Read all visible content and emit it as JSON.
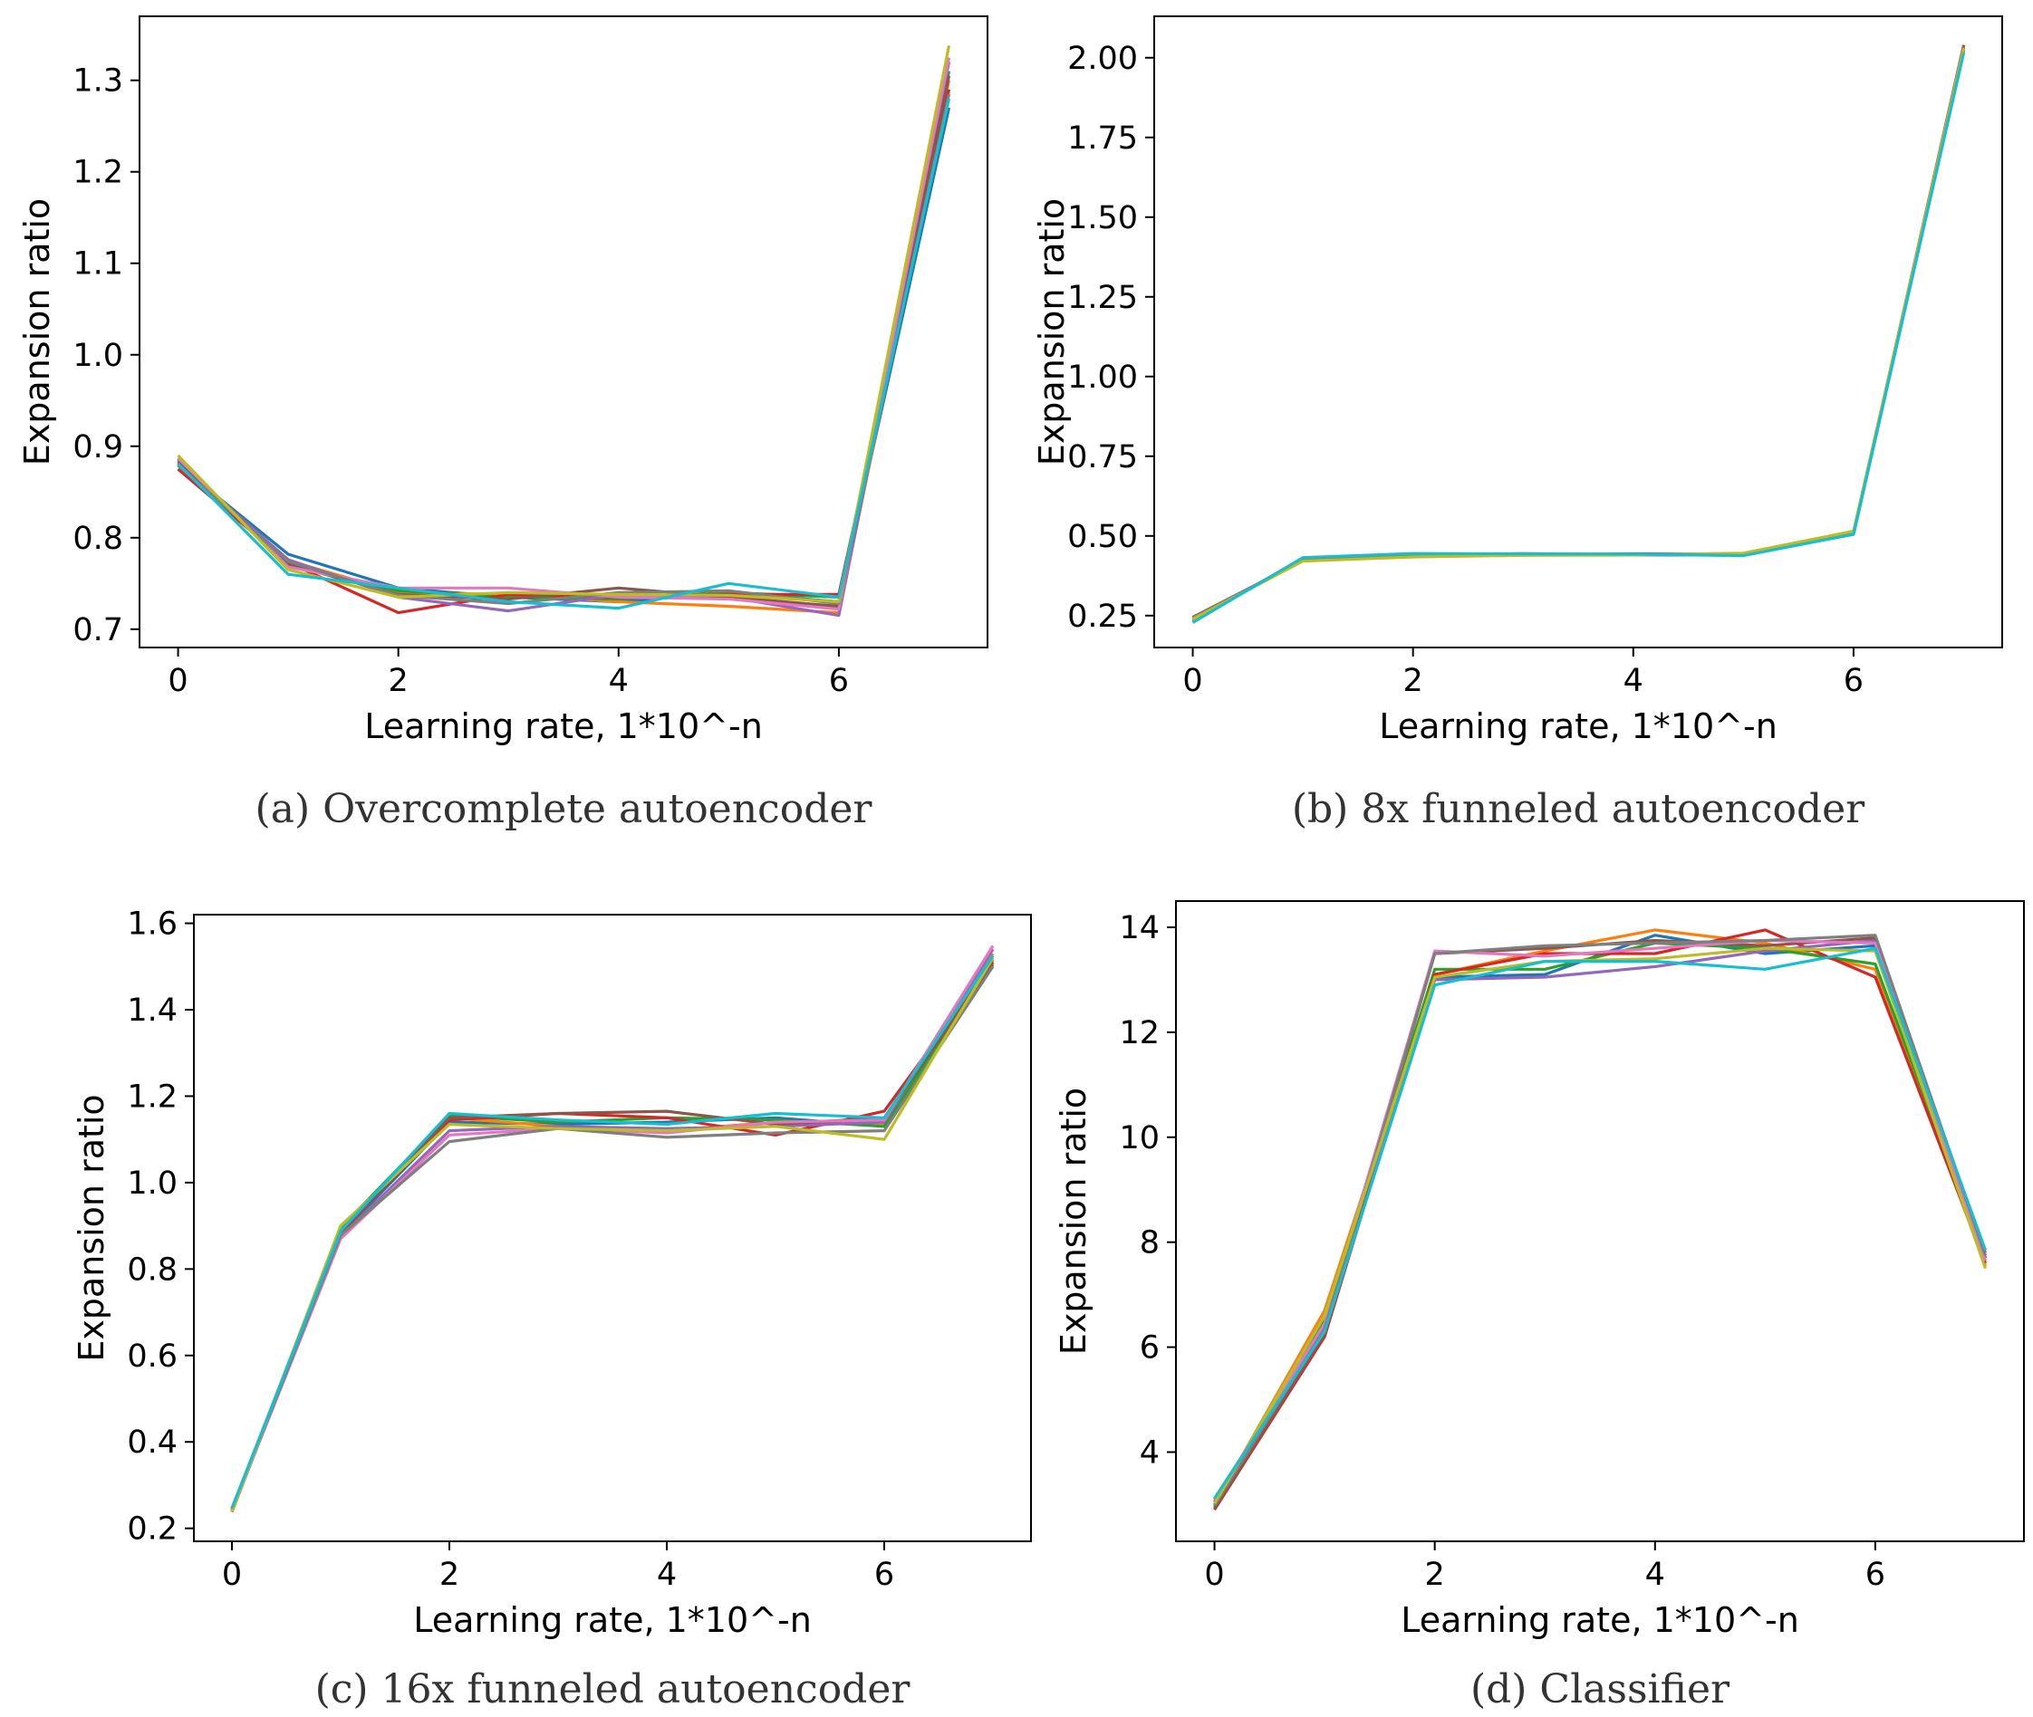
{
  "colors": [
    "#1f77b4",
    "#ff7f0e",
    "#2ca02c",
    "#d62728",
    "#9467bd",
    "#8c564b",
    "#e377c2",
    "#7f7f7f",
    "#bcbd22",
    "#17becf"
  ],
  "chart_data": [
    {
      "type": "line",
      "caption": "(a) Overcomplete autoencoder",
      "xlabel": "Learning rate, 1*10^-n",
      "ylabel": "Expansion ratio",
      "xlim": [
        -0.35,
        7.35
      ],
      "ylim": [
        0.68,
        1.37
      ],
      "xticks": [
        0,
        2,
        4,
        6
      ],
      "yticks": [
        0.7,
        0.8,
        0.9,
        1.0,
        1.1,
        1.2,
        1.3
      ],
      "ytick_labels": [
        "0.7",
        "0.8",
        "0.9",
        "1.0",
        "1.1",
        "1.2",
        "1.3"
      ],
      "x": [
        0,
        1,
        2,
        3,
        4,
        5,
        6,
        7
      ],
      "series": [
        {
          "values": [
            0.88,
            0.782,
            0.745,
            0.735,
            0.73,
            0.74,
            0.73,
            1.27
          ]
        },
        {
          "values": [
            0.883,
            0.775,
            0.74,
            0.738,
            0.73,
            0.725,
            0.718,
            1.3
          ]
        },
        {
          "values": [
            0.886,
            0.77,
            0.742,
            0.735,
            0.733,
            0.74,
            0.735,
            1.31
          ]
        },
        {
          "values": [
            0.875,
            0.773,
            0.718,
            0.738,
            0.735,
            0.738,
            0.738,
            1.29
          ]
        },
        {
          "values": [
            0.882,
            0.776,
            0.735,
            0.72,
            0.738,
            0.735,
            0.715,
            1.32
          ]
        },
        {
          "values": [
            0.884,
            0.771,
            0.738,
            0.733,
            0.745,
            0.735,
            0.725,
            1.305
          ]
        },
        {
          "values": [
            0.887,
            0.768,
            0.745,
            0.745,
            0.735,
            0.733,
            0.722,
            1.325
          ]
        },
        {
          "values": [
            0.879,
            0.774,
            0.737,
            0.728,
            0.74,
            0.742,
            0.728,
            1.285
          ]
        },
        {
          "values": [
            0.89,
            0.765,
            0.735,
            0.74,
            0.738,
            0.737,
            0.73,
            1.338
          ]
        },
        {
          "values": [
            0.881,
            0.76,
            0.745,
            0.73,
            0.723,
            0.75,
            0.735,
            1.28
          ]
        }
      ]
    },
    {
      "type": "line",
      "caption": "(b) 8x funneled autoencoder",
      "xlabel": "Learning rate, 1*10^-n",
      "ylabel": "Expansion ratio",
      "xlim": [
        -0.35,
        7.35
      ],
      "ylim": [
        0.15,
        2.13
      ],
      "xticks": [
        0,
        2,
        4,
        6
      ],
      "yticks": [
        0.25,
        0.5,
        0.75,
        1.0,
        1.25,
        1.5,
        1.75,
        2.0
      ],
      "ytick_labels": [
        "0.25",
        "0.50",
        "0.75",
        "1.00",
        "1.25",
        "1.50",
        "1.75",
        "2.00"
      ],
      "x": [
        0,
        1,
        2,
        3,
        4,
        5,
        6,
        7
      ],
      "series": [
        {
          "values": [
            0.235,
            0.428,
            0.44,
            0.442,
            0.44,
            0.44,
            0.505,
            2.02
          ]
        },
        {
          "values": [
            0.24,
            0.425,
            0.435,
            0.44,
            0.442,
            0.445,
            0.512,
            2.03
          ]
        },
        {
          "values": [
            0.232,
            0.43,
            0.438,
            0.444,
            0.441,
            0.442,
            0.508,
            2.025
          ]
        },
        {
          "values": [
            0.245,
            0.422,
            0.436,
            0.441,
            0.443,
            0.44,
            0.51,
            2.04
          ]
        },
        {
          "values": [
            0.238,
            0.426,
            0.441,
            0.443,
            0.44,
            0.441,
            0.506,
            2.028
          ]
        },
        {
          "values": [
            0.242,
            0.424,
            0.437,
            0.44,
            0.444,
            0.443,
            0.509,
            2.032
          ]
        },
        {
          "values": [
            0.236,
            0.429,
            0.439,
            0.445,
            0.442,
            0.444,
            0.511,
            2.026
          ]
        },
        {
          "values": [
            0.244,
            0.423,
            0.44,
            0.442,
            0.441,
            0.442,
            0.507,
            2.035
          ]
        },
        {
          "values": [
            0.239,
            0.421,
            0.434,
            0.439,
            0.44,
            0.446,
            0.515,
            2.03
          ]
        },
        {
          "values": [
            0.228,
            0.432,
            0.445,
            0.444,
            0.443,
            0.438,
            0.505,
            2.015
          ]
        }
      ]
    },
    {
      "type": "line",
      "caption": "(c) 16x funneled autoencoder",
      "xlabel": "Learning rate, 1*10^-n",
      "ylabel": "Expansion ratio",
      "xlim": [
        -0.35,
        7.35
      ],
      "ylim": [
        0.17,
        1.62
      ],
      "xticks": [
        0,
        2,
        4,
        6
      ],
      "yticks": [
        0.2,
        0.4,
        0.6,
        0.8,
        1.0,
        1.2,
        1.4,
        1.6
      ],
      "ytick_labels": [
        "0.2",
        "0.4",
        "0.6",
        "0.8",
        "1.0",
        "1.2",
        "1.4",
        "1.6"
      ],
      "x": [
        0,
        1,
        2,
        3,
        4,
        5,
        6,
        7
      ],
      "series": [
        {
          "values": [
            0.245,
            0.88,
            1.14,
            1.135,
            1.14,
            1.15,
            1.13,
            1.52
          ]
        },
        {
          "values": [
            0.24,
            0.89,
            1.15,
            1.13,
            1.12,
            1.14,
            1.135,
            1.53
          ]
        },
        {
          "values": [
            0.242,
            0.895,
            1.155,
            1.14,
            1.15,
            1.145,
            1.13,
            1.515
          ]
        },
        {
          "values": [
            0.238,
            0.885,
            1.145,
            1.16,
            1.15,
            1.11,
            1.165,
            1.51
          ]
        },
        {
          "values": [
            0.244,
            0.875,
            1.12,
            1.13,
            1.125,
            1.13,
            1.14,
            1.54
          ]
        },
        {
          "values": [
            0.246,
            0.882,
            1.15,
            1.16,
            1.165,
            1.135,
            1.15,
            1.505
          ]
        },
        {
          "values": [
            0.241,
            0.87,
            1.11,
            1.125,
            1.115,
            1.14,
            1.145,
            1.548
          ]
        },
        {
          "values": [
            0.243,
            0.878,
            1.095,
            1.125,
            1.105,
            1.115,
            1.12,
            1.5
          ]
        },
        {
          "values": [
            0.239,
            0.9,
            1.135,
            1.125,
            1.12,
            1.13,
            1.1,
            1.52
          ]
        },
        {
          "values": [
            0.247,
            0.888,
            1.16,
            1.145,
            1.135,
            1.16,
            1.15,
            1.525
          ]
        }
      ]
    },
    {
      "type": "line",
      "caption": "(d) Classifier",
      "xlabel": "Learning rate, 1*10^-n",
      "ylabel": "Expansion ratio",
      "xlim": [
        -0.35,
        7.35
      ],
      "ylim": [
        2.3,
        14.5
      ],
      "xticks": [
        0,
        2,
        4,
        6
      ],
      "yticks": [
        4,
        6,
        8,
        10,
        12,
        14
      ],
      "ytick_labels": [
        "4",
        "6",
        "8",
        "10",
        "12",
        "14"
      ],
      "x": [
        0,
        1,
        2,
        3,
        4,
        5,
        6,
        7
      ],
      "series": [
        {
          "values": [
            3.05,
            6.3,
            13.05,
            13.1,
            13.85,
            13.5,
            13.65,
            7.7
          ]
        },
        {
          "values": [
            3.0,
            6.7,
            13.1,
            13.55,
            13.95,
            13.7,
            13.2,
            7.55
          ]
        },
        {
          "values": [
            2.95,
            6.5,
            13.2,
            13.2,
            13.7,
            13.6,
            13.3,
            7.65
          ]
        },
        {
          "values": [
            2.9,
            6.2,
            13.1,
            13.5,
            13.5,
            13.95,
            13.05,
            7.6
          ]
        },
        {
          "values": [
            3.1,
            6.4,
            13.0,
            13.05,
            13.25,
            13.55,
            13.75,
            7.8
          ]
        },
        {
          "values": [
            2.92,
            6.25,
            13.5,
            13.6,
            13.75,
            13.65,
            13.8,
            7.7
          ]
        },
        {
          "values": [
            3.08,
            6.45,
            13.55,
            13.45,
            13.6,
            13.75,
            13.7,
            7.65
          ]
        },
        {
          "values": [
            2.98,
            6.35,
            13.5,
            13.65,
            13.7,
            13.75,
            13.85,
            7.75
          ]
        },
        {
          "values": [
            3.02,
            6.6,
            13.05,
            13.35,
            13.4,
            13.6,
            13.55,
            7.5
          ]
        },
        {
          "values": [
            3.12,
            6.3,
            12.9,
            13.35,
            13.35,
            13.2,
            13.6,
            7.85
          ]
        }
      ]
    }
  ]
}
